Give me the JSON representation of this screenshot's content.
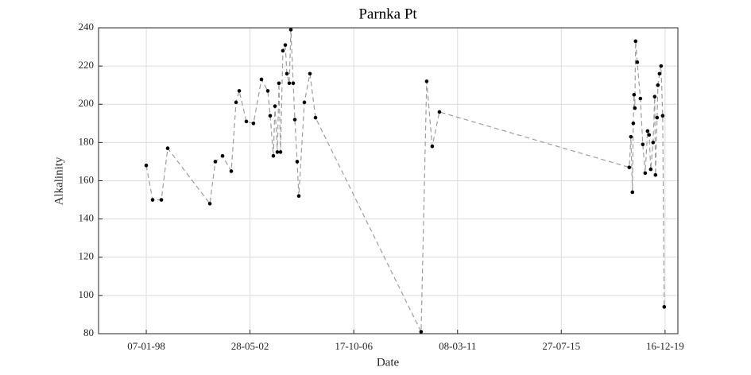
{
  "chart_data": {
    "type": "line",
    "title": "Parnka Pt",
    "x_label": "Date",
    "y_label": "Alkalinity",
    "x": [
      "07-01-98",
      "15-04-98",
      "28-08-98",
      "04-12-98",
      "15-09-00",
      "09-12-00",
      "30-03-01",
      "12-08-01",
      "25-10-01",
      "13-12-01",
      "02-04-02",
      "21-07-02",
      "21-11-02",
      "27-02-03",
      "05-04-03",
      "24-05-03",
      "18-06-03",
      "25-07-03",
      "18-08-03",
      "12-09-03",
      "18-10-03",
      "24-11-03",
      "19-12-03",
      "25-01-04",
      "18-02-04",
      "26-03-04",
      "20-04-04",
      "26-05-04",
      "20-06-04",
      "14-09-04",
      "09-12-04",
      "05-03-05",
      "22-08-09",
      "16-11-09",
      "10-02-10",
      "01-06-10",
      "11-06-18",
      "06-07-18",
      "30-07-18",
      "12-08-18",
      "24-08-18",
      "05-09-18",
      "17-09-18",
      "12-10-18",
      "30-11-18",
      "06-01-19",
      "12-02-19",
      "21-03-19",
      "14-04-19",
      "09-05-19",
      "14-06-19",
      "09-07-19",
      "21-07-19",
      "15-08-19",
      "27-08-19",
      "21-09-19",
      "15-10-19",
      "09-11-19",
      "03-12-19"
    ],
    "y": [
      168,
      150,
      150,
      177,
      148,
      170,
      173,
      165,
      201,
      207,
      191,
      190,
      213,
      207,
      194,
      173,
      199,
      175,
      211,
      175,
      228,
      231,
      216,
      211,
      239,
      211,
      192,
      170,
      152,
      201,
      216,
      193,
      81,
      212,
      178,
      196,
      167,
      183,
      154,
      190,
      205,
      198,
      233,
      222,
      203,
      179,
      164,
      186,
      184,
      166,
      180,
      204,
      163,
      193,
      210,
      216,
      220,
      194,
      94
    ],
    "color": "#000000",
    "line_color": "#9e9e9e",
    "xlim": [
      "01-01-96",
      "01-07-20"
    ],
    "xticks": [
      "07-01-98",
      "28-05-02",
      "17-10-06",
      "08-03-11",
      "27-07-15",
      "16-12-19"
    ],
    "ylim": [
      80,
      240
    ],
    "yticks": [
      80,
      100,
      120,
      140,
      160,
      180,
      200,
      220,
      240
    ],
    "grid": true
  }
}
